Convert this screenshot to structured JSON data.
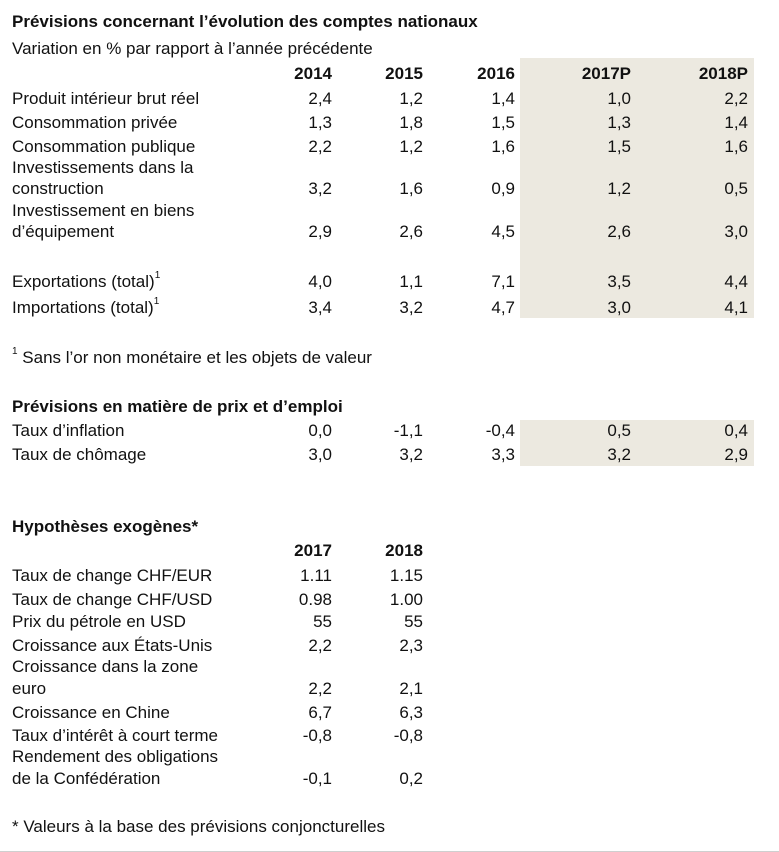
{
  "section1": {
    "title": "Prévisions concernant l’évolution des comptes nationaux",
    "subtitle": "Variation en % par rapport à l’année précédente",
    "years": [
      "2014",
      "2015",
      "2016",
      "2017P",
      "2018P"
    ],
    "rows": [
      {
        "label": "Produit intérieur brut réel",
        "values": [
          "2,4",
          "1,2",
          "1,4",
          "1,0",
          "2,2"
        ]
      },
      {
        "label": "Consommation privée",
        "values": [
          "1,3",
          "1,8",
          "1,5",
          "1,3",
          "1,4"
        ]
      },
      {
        "label": "Consommation publique",
        "values": [
          "2,2",
          "1,2",
          "1,6",
          "1,5",
          "1,6"
        ]
      },
      {
        "label_line1": "Investissements dans la",
        "label_line2": "construction",
        "values": [
          "3,2",
          "1,6",
          "0,9",
          "1,2",
          "0,5"
        ]
      },
      {
        "label_line1": "Investissement en biens",
        "label_line2": "d’équipement",
        "values": [
          "2,9",
          "2,6",
          "4,5",
          "2,6",
          "3,0"
        ]
      },
      {
        "label": "Exportations (total)",
        "sup": "1",
        "values": [
          "4,0",
          "1,1",
          "7,1",
          "3,5",
          "4,4"
        ]
      },
      {
        "label": "Importations (total)",
        "sup": "1",
        "values": [
          "3,4",
          "3,2",
          "4,7",
          "3,0",
          "4,1"
        ]
      }
    ],
    "footnote_mark": "1",
    "footnote": " Sans l’or non monétaire et les objets de valeur"
  },
  "section2": {
    "title": "Prévisions en matière de prix et d’emploi",
    "rows": [
      {
        "label": "Taux d’inflation",
        "values": [
          "0,0",
          "-1,1",
          "-0,4",
          "0,5",
          "0,4"
        ]
      },
      {
        "label": "Taux de chômage",
        "values": [
          "3,0",
          "3,2",
          "3,3",
          "3,2",
          "2,9"
        ]
      }
    ]
  },
  "section3": {
    "title": "Hypothèses exogènes*",
    "years": [
      "2017",
      "2018"
    ],
    "rows": [
      {
        "label": "Taux de change CHF/EUR",
        "values": [
          "1.11",
          "1.15"
        ]
      },
      {
        "label": "Taux de change CHF/USD",
        "values": [
          "0.98",
          "1.00"
        ]
      },
      {
        "label": "Prix du pétrole en USD",
        "values": [
          "55",
          "55"
        ]
      },
      {
        "label": "Croissance aux États-Unis",
        "values": [
          "2,2",
          "2,3"
        ]
      },
      {
        "label_line1": "Croissance dans la zone",
        "label_line2": "euro",
        "values": [
          "2,2",
          "2,1"
        ]
      },
      {
        "label": "Croissance en Chine",
        "values": [
          "6,7",
          "6,3"
        ]
      },
      {
        "label": "Taux d’intérêt à court terme",
        "values": [
          "-0,8",
          "-0,8"
        ]
      },
      {
        "label_line1": "Rendement des obligations",
        "label_line2": "de la Confédération",
        "values": [
          "-0,1",
          "0,2"
        ]
      }
    ],
    "footnote": "* Valeurs à la base des prévisions conjoncturelles"
  }
}
